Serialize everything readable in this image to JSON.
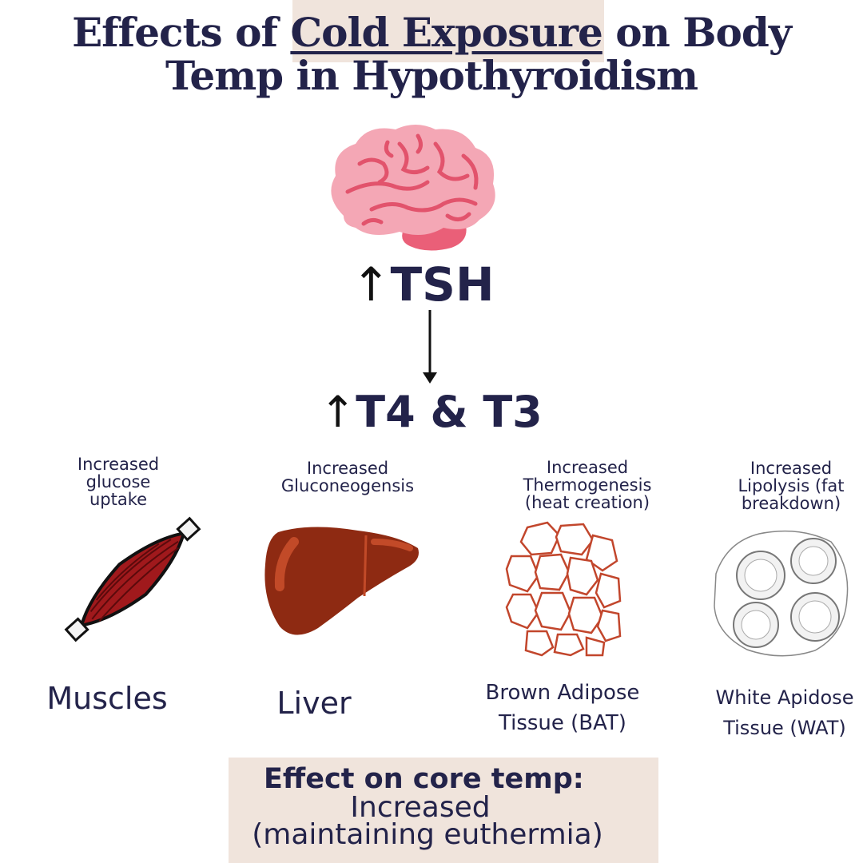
{
  "title": {
    "prefix": "Effects of ",
    "highlight": "Cold Exposure",
    "suffix": " on Body",
    "line2": "Temp in Hypothyroidism"
  },
  "hormones": {
    "tsh": "TSH",
    "t4t3": "T4 & T3",
    "up_symbol": "↑"
  },
  "targets": [
    {
      "effect_lines": [
        "Increased",
        "glucose",
        "uptake"
      ],
      "organ_lines": [
        "Muscles"
      ]
    },
    {
      "effect_lines": [
        "Increased",
        "Gluconeogensis"
      ],
      "organ_lines": [
        "Liver"
      ]
    },
    {
      "effect_lines": [
        "Increased",
        "Thermogenesis",
        "(heat creation)"
      ],
      "organ_lines": [
        "Brown Adipose",
        "Tissue (BAT)"
      ]
    },
    {
      "effect_lines": [
        "Increased",
        "Lipolysis (fat",
        "breakdown)"
      ],
      "organ_lines": [
        "White Apidose",
        "Tissue (WAT)"
      ]
    }
  ],
  "summary": {
    "heading": "Effect on core temp:",
    "line1": "Increased",
    "line2": "(maintaining euthermia)"
  },
  "colors": {
    "navy": "#23234a",
    "highlight_bg": "#f0e4dc",
    "brain_pink": "#f4a7b5",
    "liver": "#8e2a12",
    "muscle": "#a0191c",
    "bat_line": "#c2462c"
  }
}
